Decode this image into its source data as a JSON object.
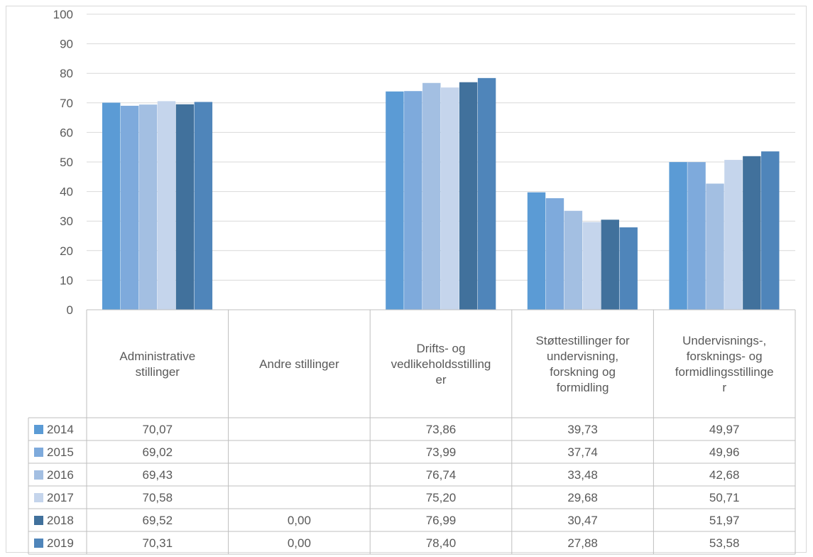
{
  "chart_data": {
    "type": "bar",
    "ylim": [
      0,
      100
    ],
    "yticks": [
      "0",
      "10",
      "20",
      "30",
      "40",
      "50",
      "60",
      "70",
      "80",
      "90",
      "100"
    ],
    "grid": true,
    "legend": "data-table",
    "categories": [
      [
        "Administrative",
        "stillinger"
      ],
      [
        "Andre stillinger"
      ],
      [
        "Drifts- og",
        "vedlikeholdsstilling",
        "er"
      ],
      [
        "Støttestillinger for",
        "undervisning,",
        "forskning og",
        "formidling"
      ],
      [
        "Undervisnings-,",
        "forsknings- og",
        "formidlingsstillinge",
        "r"
      ]
    ],
    "series": [
      {
        "name": "2014",
        "color": "#5b9bd5",
        "values": [
          70.07,
          null,
          73.86,
          39.73,
          49.97
        ],
        "labels": [
          "70,07",
          "",
          "73,86",
          "39,73",
          "49,97"
        ]
      },
      {
        "name": "2015",
        "color": "#7eaadc",
        "values": [
          69.02,
          null,
          73.99,
          37.74,
          49.96
        ],
        "labels": [
          "69,02",
          "",
          "73,99",
          "37,74",
          "49,96"
        ]
      },
      {
        "name": "2016",
        "color": "#a3bfe2",
        "values": [
          69.43,
          null,
          76.74,
          33.48,
          42.68
        ],
        "labels": [
          "69,43",
          "",
          "76,74",
          "33,48",
          "42,68"
        ]
      },
      {
        "name": "2017",
        "color": "#c5d5ec",
        "values": [
          70.58,
          null,
          75.2,
          29.68,
          50.71
        ],
        "labels": [
          "70,58",
          "",
          "75,20",
          "29,68",
          "50,71"
        ]
      },
      {
        "name": "2018",
        "color": "#41719c",
        "values": [
          69.52,
          0.0,
          76.99,
          30.47,
          51.97
        ],
        "labels": [
          "69,52",
          "0,00",
          "76,99",
          "30,47",
          "51,97"
        ]
      },
      {
        "name": "2019",
        "color": "#4f85ba",
        "values": [
          70.31,
          0.0,
          78.4,
          27.88,
          53.58
        ],
        "labels": [
          "70,31",
          "0,00",
          "78,40",
          "27,88",
          "53,58"
        ]
      }
    ]
  }
}
